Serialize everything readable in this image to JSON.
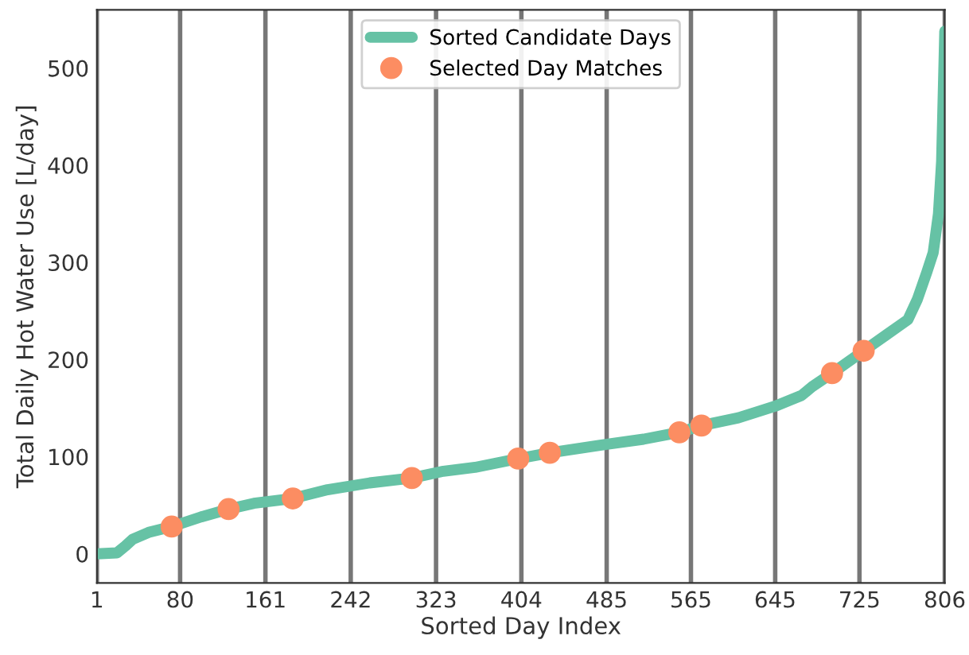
{
  "chart_data": {
    "type": "line",
    "xlabel": "Sorted Day Index",
    "ylabel": "Total Daily Hot Water Use [L/day]",
    "xlim": [
      1,
      806
    ],
    "xticks": [
      1,
      80,
      161,
      242,
      323,
      404,
      485,
      565,
      645,
      725,
      806
    ],
    "ylim": [
      -30,
      560
    ],
    "yticks": [
      0,
      100,
      200,
      300,
      400,
      500
    ],
    "grid": "x",
    "legend": "top",
    "series": [
      {
        "name": "Sorted Candidate Days",
        "color": "#66c2a5",
        "x": [
          1,
          20,
          28,
          35,
          50,
          72,
          100,
          126,
          150,
          187,
          220,
          260,
          300,
          330,
          360,
          401,
          431,
          480,
          520,
          554,
          575,
          610,
          645,
          670,
          680,
          699,
          729,
          750,
          771,
          780,
          789,
          795,
          800,
          803,
          806
        ],
        "values": [
          0,
          1,
          8,
          15,
          22,
          28,
          38,
          46,
          52,
          57,
          66,
          73,
          78,
          85,
          89,
          98,
          104,
          112,
          118,
          125,
          132,
          140,
          152,
          163,
          172,
          186,
          209,
          225,
          241,
          262,
          290,
          310,
          350,
          404,
          538
        ]
      },
      {
        "name": "Selected Day Matches",
        "type": "scatter",
        "marker": "circle",
        "color": "#fc8d62",
        "x": [
          72,
          126,
          187,
          300,
          401,
          431,
          554,
          575,
          699,
          729
        ],
        "values": [
          28,
          46,
          57,
          78,
          98,
          104,
          125,
          132,
          186,
          209
        ]
      }
    ]
  }
}
